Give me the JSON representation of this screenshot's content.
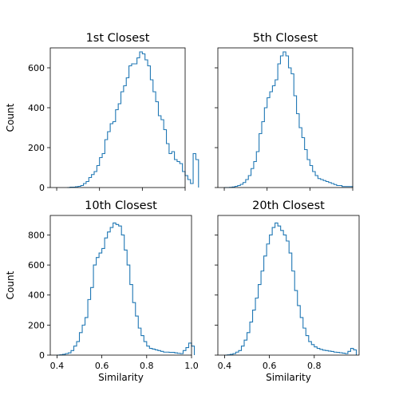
{
  "chart_data": [
    {
      "type": "histogram",
      "title": "1st Closest",
      "xlabel": "",
      "ylabel": "Count",
      "xlim": [
        0.37,
        1.0
      ],
      "ylim": [
        0,
        700
      ],
      "yticks": [
        0,
        200,
        400,
        600
      ],
      "xticks": [],
      "bin_start": 0.45,
      "bin_width": 0.0125,
      "values": [
        0,
        2,
        2,
        4,
        6,
        10,
        20,
        30,
        50,
        65,
        80,
        110,
        150,
        170,
        240,
        280,
        320,
        330,
        390,
        420,
        480,
        510,
        550,
        610,
        620,
        620,
        650,
        680,
        670,
        640,
        610,
        540,
        480,
        430,
        360,
        340,
        290,
        220,
        170,
        180,
        140,
        130,
        120,
        80,
        60,
        40,
        20,
        170,
        140
      ]
    },
    {
      "type": "histogram",
      "title": "5th Closest",
      "xlabel": "",
      "ylabel": "",
      "xlim": [
        0.37,
        1.0
      ],
      "ylim": [
        0,
        700
      ],
      "yticks": [
        0,
        200,
        400,
        600
      ],
      "xticks": [],
      "bin_start": 0.4,
      "bin_width": 0.0125,
      "values": [
        0,
        0,
        1,
        3,
        6,
        10,
        16,
        25,
        40,
        60,
        95,
        130,
        180,
        270,
        330,
        400,
        450,
        480,
        510,
        540,
        620,
        660,
        680,
        660,
        600,
        570,
        460,
        370,
        300,
        250,
        190,
        140,
        110,
        80,
        60,
        45,
        40,
        35,
        30,
        25,
        20,
        15,
        10,
        10,
        5,
        5,
        5,
        5
      ]
    },
    {
      "type": "histogram",
      "title": "10th Closest",
      "xlabel": "Similarity",
      "ylabel": "Count",
      "xlim": [
        0.37,
        1.0
      ],
      "ylim": [
        0,
        930
      ],
      "yticks": [
        0,
        200,
        400,
        600,
        800
      ],
      "xticks": [
        0.4,
        0.6,
        0.8,
        1.0
      ],
      "xticklabels": [
        "0.4",
        "0.6",
        "0.8",
        "1.0"
      ],
      "bin_start": 0.4,
      "bin_width": 0.0125,
      "values": [
        0,
        2,
        5,
        10,
        15,
        30,
        60,
        90,
        150,
        200,
        250,
        370,
        450,
        600,
        650,
        680,
        710,
        780,
        820,
        850,
        880,
        870,
        860,
        800,
        700,
        600,
        470,
        350,
        260,
        180,
        130,
        90,
        60,
        45,
        40,
        35,
        30,
        25,
        20,
        20,
        18,
        18,
        15,
        12,
        10,
        30,
        50,
        80,
        60
      ]
    },
    {
      "type": "histogram",
      "title": "20th Closest",
      "xlabel": "Similarity",
      "ylabel": "",
      "xlim": [
        0.37,
        1.0
      ],
      "ylim": [
        0,
        930
      ],
      "yticks": [
        0,
        200,
        400,
        600,
        800
      ],
      "xticks": [
        0.4,
        0.6,
        0.8
      ],
      "xticklabels": [
        "0.4",
        "0.6",
        "0.8"
      ],
      "bin_start": 0.4,
      "bin_width": 0.0125,
      "values": [
        0,
        2,
        5,
        10,
        20,
        30,
        60,
        100,
        150,
        220,
        300,
        380,
        470,
        560,
        660,
        740,
        800,
        850,
        880,
        860,
        830,
        800,
        760,
        680,
        560,
        430,
        330,
        250,
        180,
        130,
        90,
        70,
        55,
        45,
        38,
        33,
        30,
        27,
        24,
        20,
        18,
        16,
        13,
        10,
        25,
        45,
        35
      ]
    }
  ],
  "style": {
    "line_color": "#1f77b4",
    "axis_color": "#000000"
  }
}
